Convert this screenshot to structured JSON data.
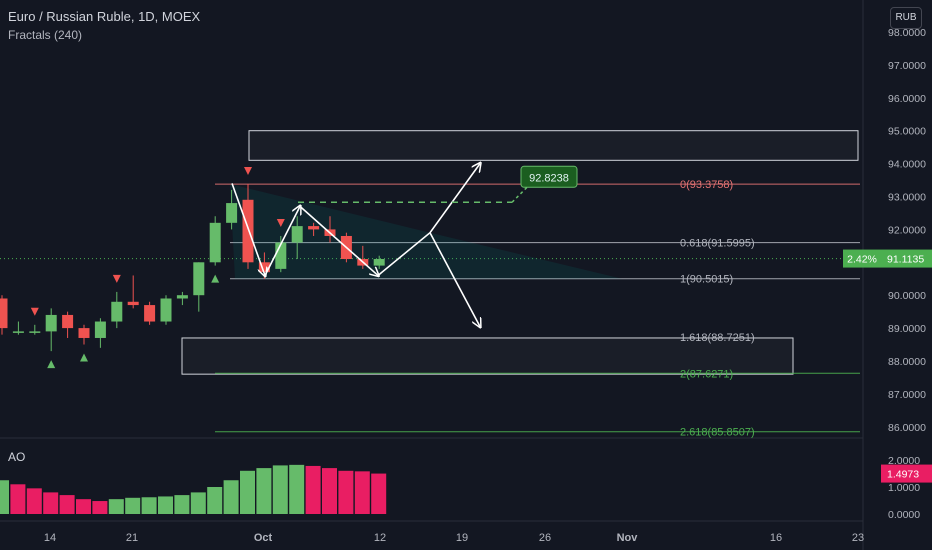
{
  "header": {
    "title": "Euro / Russian Ruble, 1D, MOEX",
    "indicator": "Fractals (240)"
  },
  "currency_button": "RUB",
  "oscillator": {
    "name": "AO",
    "current_value": "1.4973",
    "axis_ticks": [
      "2.0000",
      "1.0000",
      "0.0000"
    ]
  },
  "last_price": {
    "value": "91.1135",
    "change": "2.42%"
  },
  "colors": {
    "up": "#66bb6a",
    "down": "#ef5350",
    "ao_up": "#66bb6a",
    "ao_down": "#e91e63",
    "fib_zero": "#e57373",
    "fib_ext": "#4caf50",
    "last_price": "#4caf50"
  },
  "chart_data": {
    "type": "candlestick",
    "symbol": "EURRUB",
    "timeframe": "1D",
    "y_range": [
      85.6,
      98.4
    ],
    "y_ticks": [
      "98.0000",
      "97.0000",
      "96.0000",
      "95.0000",
      "94.0000",
      "93.0000",
      "92.0000",
      "91.0000",
      "90.0000",
      "89.0000",
      "88.0000",
      "87.0000",
      "86.0000"
    ],
    "x_ticks": [
      "14",
      "21",
      "Oct",
      "12",
      "19",
      "26",
      "Nov",
      "16",
      "23"
    ],
    "candles": [
      {
        "o": 89.9,
        "h": 90.0,
        "l": 88.8,
        "c": 89.0
      },
      {
        "o": 88.9,
        "h": 89.2,
        "l": 88.8,
        "c": 88.9
      },
      {
        "o": 88.9,
        "h": 89.1,
        "l": 88.8,
        "c": 88.9
      },
      {
        "o": 88.9,
        "h": 89.6,
        "l": 88.3,
        "c": 89.4
      },
      {
        "o": 89.4,
        "h": 89.5,
        "l": 88.7,
        "c": 89.0
      },
      {
        "o": 89.0,
        "h": 89.1,
        "l": 88.5,
        "c": 88.7
      },
      {
        "o": 88.7,
        "h": 89.3,
        "l": 88.4,
        "c": 89.2
      },
      {
        "o": 89.2,
        "h": 90.1,
        "l": 89.0,
        "c": 89.8
      },
      {
        "o": 89.8,
        "h": 90.6,
        "l": 89.6,
        "c": 89.7
      },
      {
        "o": 89.7,
        "h": 89.8,
        "l": 89.1,
        "c": 89.2
      },
      {
        "o": 89.2,
        "h": 90.0,
        "l": 89.1,
        "c": 89.9
      },
      {
        "o": 89.9,
        "h": 90.1,
        "l": 89.7,
        "c": 90.0
      },
      {
        "o": 90.0,
        "h": 91.0,
        "l": 89.5,
        "c": 91.0
      },
      {
        "o": 91.0,
        "h": 92.4,
        "l": 90.9,
        "c": 92.2
      },
      {
        "o": 92.2,
        "h": 93.2,
        "l": 92.0,
        "c": 92.8
      },
      {
        "o": 92.9,
        "h": 93.38,
        "l": 90.8,
        "c": 91.0
      },
      {
        "o": 91.0,
        "h": 91.3,
        "l": 90.5,
        "c": 90.7
      },
      {
        "o": 90.8,
        "h": 91.8,
        "l": 90.7,
        "c": 91.6
      },
      {
        "o": 91.6,
        "h": 92.4,
        "l": 91.1,
        "c": 92.1
      },
      {
        "o": 92.1,
        "h": 92.2,
        "l": 91.8,
        "c": 92.0
      },
      {
        "o": 92.0,
        "h": 92.4,
        "l": 91.6,
        "c": 91.8
      },
      {
        "o": 91.8,
        "h": 91.9,
        "l": 91.0,
        "c": 91.1
      },
      {
        "o": 91.1,
        "h": 91.5,
        "l": 90.8,
        "c": 90.9
      },
      {
        "o": 90.9,
        "h": 91.2,
        "l": 90.8,
        "c": 91.1
      }
    ],
    "fractals_up": [
      2,
      7,
      15,
      17
    ],
    "fractals_down": [
      3,
      5,
      13
    ],
    "ao_values": [
      1.25,
      1.1,
      0.95,
      0.8,
      0.7,
      0.55,
      0.48,
      0.55,
      0.6,
      0.62,
      0.65,
      0.7,
      0.8,
      1.0,
      1.25,
      1.6,
      1.7,
      1.8,
      1.82,
      1.78,
      1.7,
      1.6,
      1.58,
      1.4973
    ],
    "fibonacci": [
      {
        "label": "0(93.3758)",
        "price": 93.3758
      },
      {
        "label": "0.618(91.5995)",
        "price": 91.5995
      },
      {
        "label": "1(90.5015)",
        "price": 90.5015
      },
      {
        "label": "1.618(88.7251)",
        "price": 88.7251
      },
      {
        "label": "2(87.6271)",
        "price": 87.6271
      },
      {
        "label": "2.618(85.8507)",
        "price": 85.8507
      }
    ],
    "target_label": "92.8238",
    "target_price": 92.8238,
    "zones": [
      {
        "top": 95.0,
        "bottom": 94.1
      },
      {
        "top": 88.7,
        "bottom": 87.6
      }
    ]
  }
}
